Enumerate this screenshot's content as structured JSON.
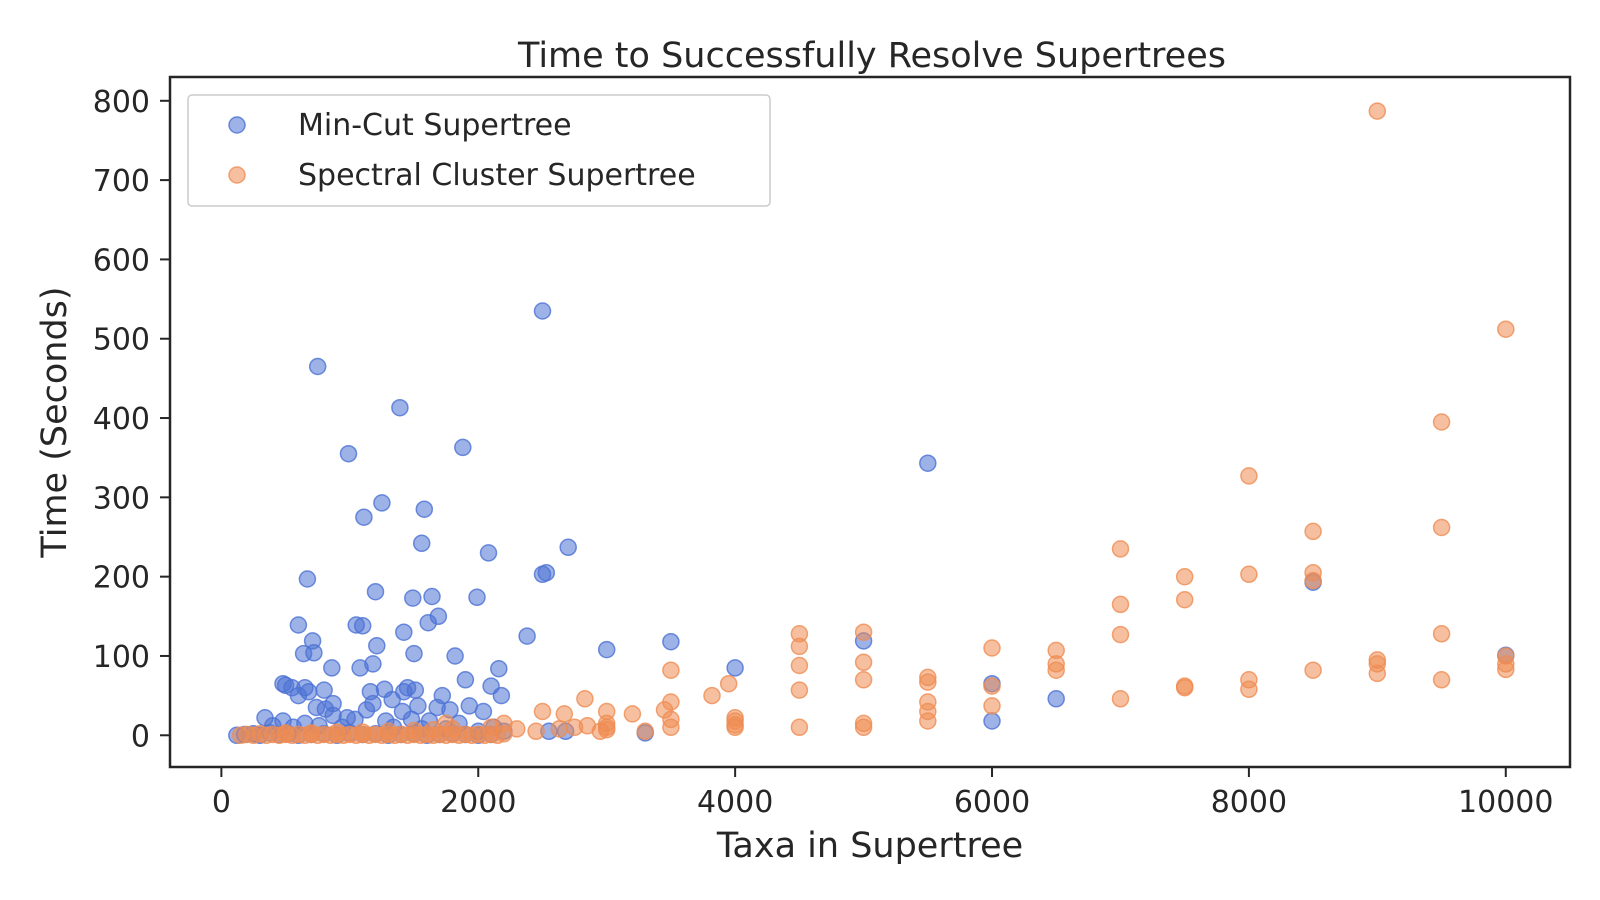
{
  "chart_data": {
    "type": "scatter",
    "title": "Time to Successfully Resolve Supertrees",
    "xlabel": "Taxa in Supertree",
    "ylabel": "Time (Seconds)",
    "xlim": [
      -400,
      10500
    ],
    "ylim": [
      -40,
      830
    ],
    "xticks": [
      0,
      2000,
      4000,
      6000,
      8000,
      10000
    ],
    "yticks": [
      0,
      100,
      200,
      300,
      400,
      500,
      600,
      700,
      800
    ],
    "grid": false,
    "legend": "top-left",
    "series": [
      {
        "name": "Min-Cut Supertree",
        "color": "#4c72d4",
        "points": [
          [
            750,
            465
          ],
          [
            2500,
            535
          ],
          [
            1390,
            413
          ],
          [
            990,
            355
          ],
          [
            1880,
            363
          ],
          [
            1250,
            293
          ],
          [
            1110,
            275
          ],
          [
            1580,
            285
          ],
          [
            670,
            197
          ],
          [
            1560,
            242
          ],
          [
            2700,
            237
          ],
          [
            2080,
            230
          ],
          [
            2500,
            203
          ],
          [
            2530,
            205
          ],
          [
            1200,
            181
          ],
          [
            1490,
            173
          ],
          [
            1640,
            175
          ],
          [
            1990,
            174
          ],
          [
            1690,
            150
          ],
          [
            1610,
            142
          ],
          [
            600,
            139
          ],
          [
            1050,
            139
          ],
          [
            1100,
            138
          ],
          [
            710,
            119
          ],
          [
            1420,
            130
          ],
          [
            1210,
            113
          ],
          [
            640,
            103
          ],
          [
            720,
            104
          ],
          [
            1500,
            103
          ],
          [
            1820,
            100
          ],
          [
            2380,
            125
          ],
          [
            3000,
            108
          ],
          [
            3500,
            118
          ],
          [
            4000,
            85
          ],
          [
            5000,
            119
          ],
          [
            5500,
            343
          ],
          [
            6000,
            65
          ],
          [
            6000,
            18
          ],
          [
            6500,
            46
          ],
          [
            8500,
            193
          ],
          [
            10000,
            101
          ],
          [
            480,
            65
          ],
          [
            500,
            63
          ],
          [
            550,
            60
          ],
          [
            650,
            60
          ],
          [
            600,
            50
          ],
          [
            680,
            55
          ],
          [
            800,
            57
          ],
          [
            860,
            85
          ],
          [
            1080,
            85
          ],
          [
            1180,
            90
          ],
          [
            1160,
            55
          ],
          [
            1270,
            58
          ],
          [
            1330,
            45
          ],
          [
            1420,
            55
          ],
          [
            1450,
            60
          ],
          [
            1510,
            57
          ],
          [
            1900,
            70
          ],
          [
            2100,
            62
          ],
          [
            2160,
            84
          ],
          [
            2180,
            50
          ],
          [
            1720,
            50
          ],
          [
            1930,
            37
          ],
          [
            2040,
            30
          ],
          [
            1780,
            32
          ],
          [
            1680,
            35
          ],
          [
            1530,
            37
          ],
          [
            1410,
            30
          ],
          [
            1180,
            40
          ],
          [
            1130,
            32
          ],
          [
            980,
            22
          ],
          [
            870,
            40
          ],
          [
            810,
            33
          ],
          [
            740,
            35
          ],
          [
            870,
            25
          ],
          [
            1040,
            20
          ],
          [
            1280,
            18
          ],
          [
            1480,
            20
          ],
          [
            1620,
            18
          ],
          [
            1850,
            15
          ],
          [
            2120,
            10
          ],
          [
            340,
            22
          ],
          [
            400,
            12
          ],
          [
            480,
            18
          ],
          [
            560,
            10
          ],
          [
            650,
            15
          ],
          [
            760,
            12
          ],
          [
            940,
            10
          ],
          [
            1340,
            10
          ],
          [
            1560,
            8
          ],
          [
            1750,
            8
          ],
          [
            2000,
            5
          ],
          [
            2200,
            5
          ],
          [
            2550,
            5
          ],
          [
            2680,
            5
          ],
          [
            3300,
            3
          ],
          [
            120,
            0
          ],
          [
            180,
            1
          ],
          [
            250,
            2
          ],
          [
            300,
            0
          ],
          [
            380,
            3
          ],
          [
            450,
            1
          ],
          [
            520,
            2
          ],
          [
            600,
            0
          ],
          [
            700,
            1
          ],
          [
            800,
            2
          ],
          [
            900,
            0
          ],
          [
            1000,
            3
          ],
          [
            1100,
            1
          ],
          [
            1200,
            2
          ],
          [
            1300,
            0
          ],
          [
            1400,
            1
          ],
          [
            1500,
            2
          ],
          [
            1600,
            0
          ],
          [
            1700,
            1
          ],
          [
            1800,
            2
          ],
          [
            1900,
            1
          ],
          [
            2000,
            0
          ],
          [
            2100,
            1
          ]
        ]
      },
      {
        "name": "Spectral Cluster Supertree",
        "color": "#ef8c52",
        "points": [
          [
            9000,
            787
          ],
          [
            10000,
            512
          ],
          [
            9500,
            395
          ],
          [
            8000,
            327
          ],
          [
            9500,
            262
          ],
          [
            8500,
            257
          ],
          [
            7000,
            235
          ],
          [
            8500,
            205
          ],
          [
            8000,
            203
          ],
          [
            7500,
            200
          ],
          [
            8500,
            195
          ],
          [
            7500,
            171
          ],
          [
            7000,
            165
          ],
          [
            4500,
            128
          ],
          [
            5000,
            130
          ],
          [
            7000,
            127
          ],
          [
            9500,
            128
          ],
          [
            4500,
            112
          ],
          [
            6000,
            110
          ],
          [
            6500,
            107
          ],
          [
            9000,
            95
          ],
          [
            10000,
            100
          ],
          [
            10000,
            90
          ],
          [
            10000,
            83
          ],
          [
            3500,
            82
          ],
          [
            4500,
            88
          ],
          [
            5000,
            92
          ],
          [
            6500,
            90
          ],
          [
            6500,
            82
          ],
          [
            8500,
            82
          ],
          [
            9000,
            90
          ],
          [
            9000,
            78
          ],
          [
            5000,
            70
          ],
          [
            5500,
            73
          ],
          [
            5500,
            67
          ],
          [
            6000,
            62
          ],
          [
            7500,
            62
          ],
          [
            7500,
            60
          ],
          [
            8000,
            70
          ],
          [
            8000,
            58
          ],
          [
            9500,
            70
          ],
          [
            3950,
            65
          ],
          [
            4500,
            57
          ],
          [
            2830,
            46
          ],
          [
            3820,
            50
          ],
          [
            7000,
            46
          ],
          [
            3500,
            42
          ],
          [
            3450,
            32
          ],
          [
            3000,
            30
          ],
          [
            3200,
            27
          ],
          [
            2500,
            30
          ],
          [
            2670,
            27
          ],
          [
            5500,
            42
          ],
          [
            5500,
            30
          ],
          [
            5500,
            18
          ],
          [
            6000,
            37
          ],
          [
            4000,
            22
          ],
          [
            4000,
            18
          ],
          [
            4000,
            13
          ],
          [
            4000,
            10
          ],
          [
            3500,
            20
          ],
          [
            3500,
            10
          ],
          [
            4500,
            10
          ],
          [
            5000,
            15
          ],
          [
            5000,
            10
          ],
          [
            3000,
            15
          ],
          [
            3000,
            10
          ],
          [
            3000,
            7
          ],
          [
            2950,
            5
          ],
          [
            2850,
            12
          ],
          [
            2200,
            15
          ],
          [
            2750,
            10
          ],
          [
            2630,
            8
          ],
          [
            2450,
            5
          ],
          [
            2300,
            8
          ],
          [
            2100,
            10
          ],
          [
            1750,
            15
          ],
          [
            1800,
            8
          ],
          [
            1650,
            7
          ],
          [
            1500,
            6
          ],
          [
            1300,
            5
          ],
          [
            1100,
            4
          ],
          [
            900,
            4
          ],
          [
            700,
            3
          ],
          [
            500,
            3
          ],
          [
            150,
            0
          ],
          [
            200,
            1
          ],
          [
            250,
            0
          ],
          [
            300,
            2
          ],
          [
            350,
            0
          ],
          [
            400,
            1
          ],
          [
            450,
            0
          ],
          [
            500,
            1
          ],
          [
            550,
            0
          ],
          [
            600,
            1
          ],
          [
            650,
            0
          ],
          [
            700,
            1
          ],
          [
            750,
            0
          ],
          [
            800,
            1
          ],
          [
            850,
            0
          ],
          [
            900,
            1
          ],
          [
            950,
            0
          ],
          [
            1000,
            1
          ],
          [
            1050,
            0
          ],
          [
            1100,
            1
          ],
          [
            1150,
            0
          ],
          [
            1200,
            1
          ],
          [
            1250,
            0
          ],
          [
            1300,
            1
          ],
          [
            1350,
            0
          ],
          [
            1400,
            1
          ],
          [
            1450,
            0
          ],
          [
            1500,
            1
          ],
          [
            1550,
            0
          ],
          [
            1600,
            1
          ],
          [
            1650,
            0
          ],
          [
            1700,
            1
          ],
          [
            1750,
            0
          ],
          [
            1800,
            1
          ],
          [
            1850,
            0
          ],
          [
            1900,
            1
          ],
          [
            1950,
            0
          ],
          [
            2000,
            1
          ],
          [
            2050,
            0
          ],
          [
            2100,
            1
          ],
          [
            2150,
            0
          ],
          [
            2200,
            2
          ],
          [
            3300,
            5
          ]
        ]
      }
    ]
  }
}
